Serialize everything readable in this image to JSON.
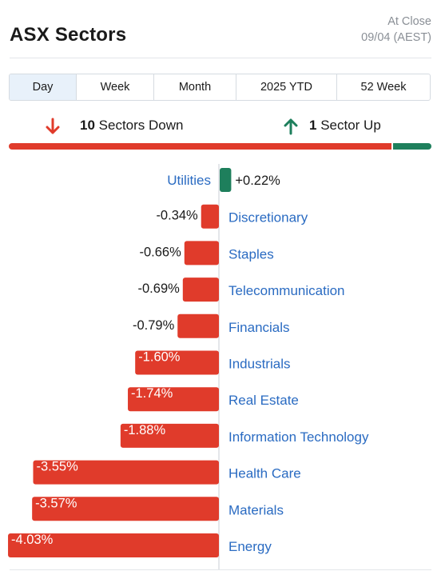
{
  "header": {
    "title": "ASX Sectors",
    "status_line1": "At Close",
    "status_line2": "09/04 (AEST)"
  },
  "tabs": [
    {
      "label": "Day",
      "active": true
    },
    {
      "label": "Week",
      "active": false
    },
    {
      "label": "Month",
      "active": false
    },
    {
      "label": "2025 YTD",
      "active": false
    },
    {
      "label": "52 Week",
      "active": false
    }
  ],
  "summary": {
    "down_count": "10",
    "down_label": "Sectors Down",
    "up_count": "1",
    "up_label": "Sector Up"
  },
  "colors": {
    "down": "#e03b2b",
    "up": "#1e7f5c",
    "link": "#2a6bc2",
    "active_tab": "#e8f1fa"
  },
  "chart_data": {
    "type": "bar",
    "orientation": "horizontal",
    "categories": [
      "Utilities",
      "Discretionary",
      "Staples",
      "Telecommunication",
      "Financials",
      "Industrials",
      "Real Estate",
      "Information Technology",
      "Health Care",
      "Materials",
      "Energy"
    ],
    "values": [
      0.22,
      -0.34,
      -0.66,
      -0.69,
      -0.79,
      -1.6,
      -1.74,
      -1.88,
      -3.55,
      -3.57,
      -4.03
    ],
    "labels": [
      "+0.22%",
      "-0.34%",
      "-0.66%",
      "-0.69%",
      "-0.79%",
      "-1.60%",
      "-1.74%",
      "-1.88%",
      "-3.55%",
      "-3.57%",
      "-4.03%"
    ],
    "unit": "%"
  }
}
